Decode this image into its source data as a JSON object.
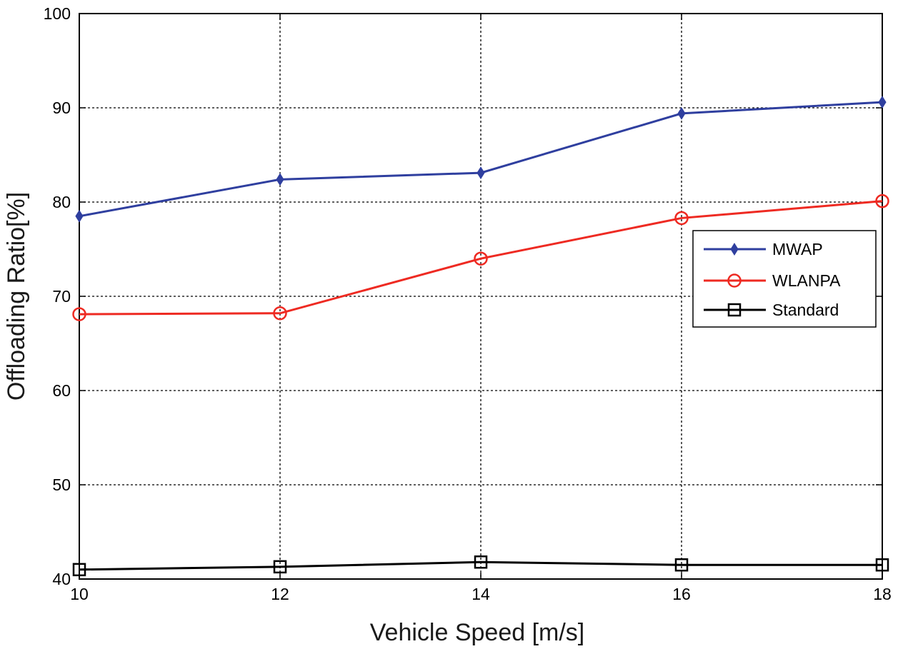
{
  "chart_data": {
    "type": "line",
    "title": "",
    "xlabel": "Vehicle Speed [m/s]",
    "ylabel": "Offloading Ratio[%]",
    "xlim": [
      10,
      18
    ],
    "ylim": [
      40,
      100
    ],
    "xticks": [
      10,
      12,
      14,
      16,
      18
    ],
    "yticks": [
      40,
      50,
      60,
      70,
      80,
      90,
      100
    ],
    "xtick_labels": [
      "10",
      "12",
      "14",
      "16",
      "18"
    ],
    "ytick_labels": [
      "40",
      "50",
      "60",
      "70",
      "80",
      "90",
      "100"
    ],
    "grid": true,
    "legend_position": "right",
    "x": [
      10,
      12,
      14,
      16,
      18
    ],
    "series": [
      {
        "name": "MWAP",
        "color": "#2f3f9f",
        "marker": "diamond",
        "values": [
          78.5,
          82.4,
          83.1,
          89.4,
          90.6
        ]
      },
      {
        "name": "WLANPA",
        "color": "#ee2a22",
        "marker": "circle",
        "values": [
          68.1,
          68.2,
          74.0,
          78.3,
          80.1
        ]
      },
      {
        "name": "Standard",
        "color": "#000000",
        "marker": "square",
        "values": [
          41.0,
          41.3,
          41.8,
          41.5,
          41.5
        ]
      }
    ]
  }
}
